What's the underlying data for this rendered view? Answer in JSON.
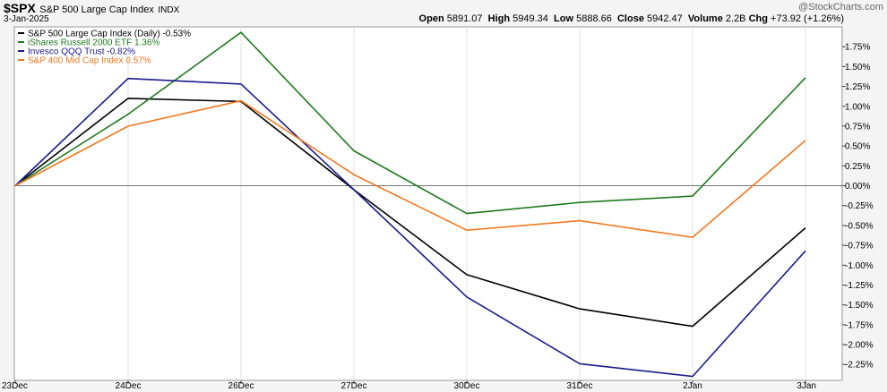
{
  "header": {
    "symbol": "$SPX",
    "name": "S&P 500 Large Cap Index",
    "exchange": "INDX",
    "date": "3-Jan-2025",
    "watermark": "@StockCharts.com",
    "ohlc": {
      "open_label": "Open",
      "open": "5891.07",
      "high_label": "High",
      "high": "5949.34",
      "low_label": "Low",
      "low": "5888.66",
      "close_label": "Close",
      "close": "5942.47",
      "volume_label": "Volume",
      "volume": "2.2B",
      "chg_label": "Chg",
      "chg": "+73.92 (+1.26%)"
    }
  },
  "chart_data": {
    "type": "line",
    "categories": [
      "23Dec",
      "24Dec",
      "26Dec",
      "27Dec",
      "30Dec",
      "31Dec",
      "2Jan",
      "3Jan"
    ],
    "ylim": [
      -2.45,
      2.0
    ],
    "yticks": [
      1.75,
      1.5,
      1.25,
      1.0,
      0.75,
      0.5,
      0.25,
      0.0,
      -0.25,
      -0.5,
      -0.75,
      -1.0,
      -1.25,
      -1.5,
      -1.75,
      -2.0,
      -2.25
    ],
    "ytick_labels": [
      "1.75%",
      "1.50%",
      "1.25%",
      "1.00%",
      "0.75%",
      "0.50%",
      "0.25%",
      "0.00%",
      "-0.25%",
      "-0.50%",
      "-0.75%",
      "-1.00%",
      "-1.25%",
      "-1.50%",
      "-1.75%",
      "-2.00%",
      "-2.25%"
    ],
    "grid": true,
    "legend_position": "top-left",
    "series": [
      {
        "name": "S&P 500 Large Cap Index (Daily) -0.53%",
        "color": "#000000",
        "values": [
          0.0,
          1.1,
          1.06,
          -0.05,
          -1.12,
          -1.55,
          -1.77,
          -0.53
        ]
      },
      {
        "name": "iShares Russell 2000 ETF 1.36%",
        "color": "#1e7a1e",
        "values": [
          0.0,
          0.9,
          1.93,
          0.44,
          -0.35,
          -0.21,
          -0.13,
          1.36
        ]
      },
      {
        "name": "Invesco QQQ Trust -0.82%",
        "color": "#1a1a8c",
        "values": [
          0.0,
          1.35,
          1.28,
          -0.05,
          -1.4,
          -2.24,
          -2.4,
          -0.82
        ]
      },
      {
        "name": "S&P 400 Mid Cap Index 0.57%",
        "color": "#f07820",
        "values": [
          0.0,
          0.75,
          1.07,
          0.14,
          -0.56,
          -0.44,
          -0.65,
          0.57
        ]
      }
    ]
  }
}
